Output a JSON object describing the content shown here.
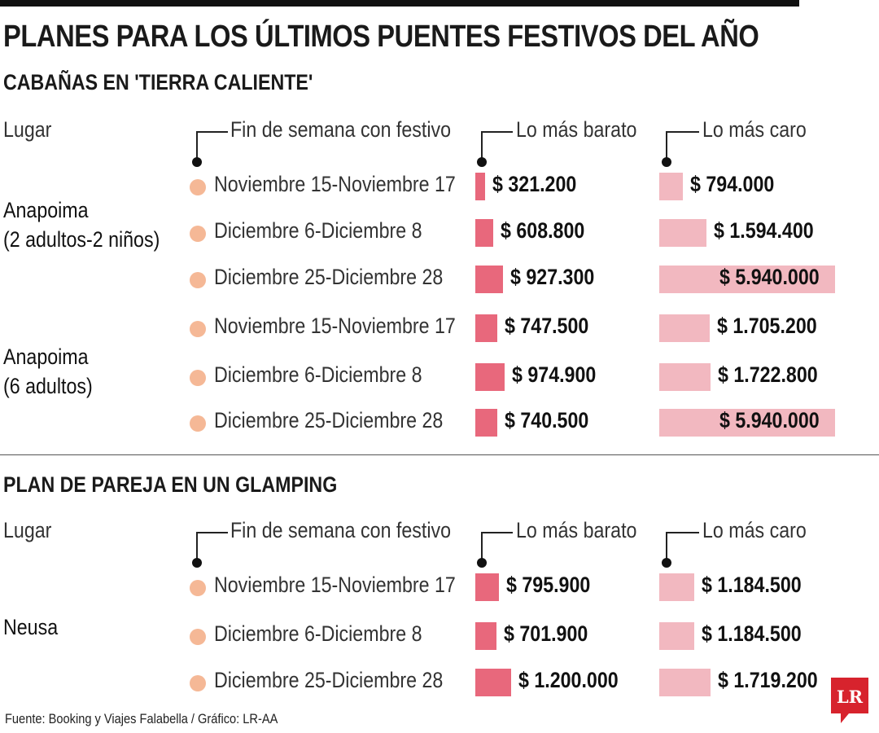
{
  "title": "PLANES PARA LOS ÚLTIMOS PUENTES FESTIVOS DEL AÑO",
  "headers": {
    "place": "Lugar",
    "dates": "Fin de semana con festivo",
    "cheap": "Lo más barato",
    "expensive": "Lo más caro"
  },
  "colors": {
    "cheap": "#e8687c",
    "expensive": "#f2b8c0",
    "dot": "#f5b896",
    "logo": "#d7232d"
  },
  "source": "Fuente: Booking y Viajes Falabella / Gráfico: LR-AA",
  "logo_text": "LR",
  "chart_data": [
    {
      "type": "bar",
      "title": "CABAÑAS EN 'TIERRA CALIENTE'",
      "groups": [
        {
          "place": [
            "Anapoima",
            "(2 adultos-2 niños)"
          ],
          "rows": [
            {
              "date": "Noviembre 15-Noviembre 17",
              "cheap": 321200,
              "cheap_label": "$ 321.200",
              "expensive": 794000,
              "expensive_label": "$ 794.000"
            },
            {
              "date": "Diciembre 6-Diciembre 8",
              "cheap": 608800,
              "cheap_label": "$ 608.800",
              "expensive": 1594400,
              "expensive_label": "$ 1.594.400"
            },
            {
              "date": "Diciembre 25-Diciembre 28",
              "cheap": 927300,
              "cheap_label": "$ 927.300",
              "expensive": 5940000,
              "expensive_label": "$ 5.940.000"
            }
          ]
        },
        {
          "place": [
            "Anapoima",
            "(6 adultos)"
          ],
          "rows": [
            {
              "date": "Noviembre 15-Noviembre 17",
              "cheap": 747500,
              "cheap_label": "$ 747.500",
              "expensive": 1705200,
              "expensive_label": "$ 1.705.200"
            },
            {
              "date": "Diciembre 6-Diciembre 8",
              "cheap": 974900,
              "cheap_label": "$ 974.900",
              "expensive": 1722800,
              "expensive_label": "$ 1.722.800"
            },
            {
              "date": "Diciembre 25-Diciembre 28",
              "cheap": 740500,
              "cheap_label": "$ 740.500",
              "expensive": 5940000,
              "expensive_label": "$ 5.940.000"
            }
          ]
        }
      ]
    },
    {
      "type": "bar",
      "title": "PLAN DE PAREJA EN UN GLAMPING",
      "groups": [
        {
          "place": [
            "Neusa"
          ],
          "rows": [
            {
              "date": "Noviembre 15-Noviembre 17",
              "cheap": 795900,
              "cheap_label": "$ 795.900",
              "expensive": 1184500,
              "expensive_label": "$ 1.184.500"
            },
            {
              "date": "Diciembre 6-Diciembre 8",
              "cheap": 701900,
              "cheap_label": "$ 701.900",
              "expensive": 1184500,
              "expensive_label": "$ 1.184.500"
            },
            {
              "date": "Diciembre 25-Diciembre 28",
              "cheap": 1200000,
              "cheap_label": "$ 1.200.000",
              "expensive": 1719200,
              "expensive_label": "$ 1.719.200"
            }
          ]
        }
      ]
    }
  ]
}
